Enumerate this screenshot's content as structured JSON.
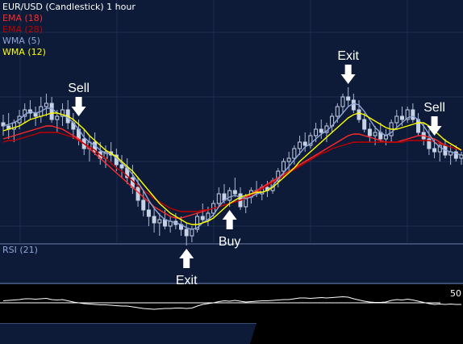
{
  "header": {
    "title": "EUR/USD (Candlestick)  1 hour"
  },
  "legend": [
    {
      "label": "EMA (18)",
      "color": "#ff2a2a"
    },
    {
      "label": "EMA (28)",
      "color": "#c00000"
    },
    {
      "label": "WMA (5)",
      "color": "#8fa6d6"
    },
    {
      "label": "WMA (12)",
      "color": "#ffff00"
    }
  ],
  "rsi": {
    "label": "RSI (21)",
    "level_label": "50"
  },
  "chart_data": {
    "type": "candlestick",
    "title": "EUR/USD (Candlestick)  1 hour",
    "price_range": [
      0,
      100
    ],
    "candles": [
      [
        70,
        75,
        62,
        68
      ],
      [
        68,
        76,
        60,
        66
      ],
      [
        66,
        72,
        58,
        70
      ],
      [
        70,
        78,
        66,
        74
      ],
      [
        74,
        82,
        70,
        78
      ],
      [
        78,
        84,
        72,
        76
      ],
      [
        76,
        80,
        68,
        74
      ],
      [
        74,
        86,
        70,
        80
      ],
      [
        80,
        88,
        74,
        82
      ],
      [
        82,
        86,
        70,
        72
      ],
      [
        72,
        78,
        64,
        74
      ],
      [
        74,
        82,
        68,
        78
      ],
      [
        78,
        84,
        66,
        70
      ],
      [
        70,
        76,
        60,
        66
      ],
      [
        66,
        72,
        56,
        60
      ],
      [
        60,
        66,
        50,
        54
      ],
      [
        54,
        62,
        46,
        58
      ],
      [
        58,
        64,
        50,
        52
      ],
      [
        52,
        58,
        44,
        48
      ],
      [
        48,
        56,
        42,
        52
      ],
      [
        52,
        58,
        46,
        50
      ],
      [
        50,
        54,
        40,
        44
      ],
      [
        44,
        50,
        36,
        42
      ],
      [
        42,
        48,
        32,
        36
      ],
      [
        36,
        44,
        26,
        30
      ],
      [
        30,
        36,
        18,
        22
      ],
      [
        22,
        28,
        12,
        16
      ],
      [
        16,
        22,
        6,
        12
      ],
      [
        12,
        18,
        2,
        8
      ],
      [
        8,
        14,
        0,
        10
      ],
      [
        10,
        16,
        4,
        6
      ],
      [
        6,
        12,
        2,
        9
      ],
      [
        9,
        14,
        4,
        7
      ],
      [
        7,
        12,
        0,
        4
      ],
      [
        4,
        8,
        -6,
        0
      ],
      [
        0,
        6,
        -4,
        4
      ],
      [
        4,
        14,
        2,
        12
      ],
      [
        12,
        20,
        8,
        10
      ],
      [
        10,
        18,
        6,
        14
      ],
      [
        14,
        22,
        12,
        20
      ],
      [
        20,
        30,
        18,
        26
      ],
      [
        26,
        32,
        20,
        22
      ],
      [
        22,
        30,
        18,
        28
      ],
      [
        28,
        36,
        24,
        26
      ],
      [
        26,
        30,
        16,
        18
      ],
      [
        18,
        26,
        14,
        24
      ],
      [
        24,
        30,
        20,
        28
      ],
      [
        28,
        34,
        24,
        26
      ],
      [
        26,
        32,
        22,
        30
      ],
      [
        30,
        34,
        24,
        28
      ],
      [
        28,
        36,
        26,
        34
      ],
      [
        34,
        42,
        30,
        40
      ],
      [
        40,
        48,
        36,
        46
      ],
      [
        46,
        52,
        40,
        48
      ],
      [
        48,
        56,
        44,
        54
      ],
      [
        54,
        62,
        50,
        58
      ],
      [
        58,
        64,
        52,
        56
      ],
      [
        56,
        64,
        54,
        62
      ],
      [
        62,
        70,
        58,
        66
      ],
      [
        66,
        72,
        60,
        64
      ],
      [
        64,
        70,
        58,
        68
      ],
      [
        68,
        76,
        64,
        74
      ],
      [
        74,
        82,
        70,
        80
      ],
      [
        80,
        88,
        76,
        86
      ],
      [
        86,
        92,
        80,
        84
      ],
      [
        84,
        88,
        76,
        78
      ],
      [
        78,
        84,
        70,
        72
      ],
      [
        72,
        76,
        64,
        66
      ],
      [
        66,
        70,
        58,
        62
      ],
      [
        62,
        68,
        56,
        64
      ],
      [
        64,
        70,
        58,
        60
      ],
      [
        60,
        66,
        56,
        62
      ],
      [
        62,
        72,
        58,
        70
      ],
      [
        70,
        78,
        66,
        74
      ],
      [
        74,
        80,
        68,
        72
      ],
      [
        72,
        80,
        70,
        78
      ],
      [
        78,
        82,
        70,
        72
      ],
      [
        72,
        76,
        62,
        64
      ],
      [
        64,
        70,
        56,
        60
      ],
      [
        60,
        66,
        50,
        54
      ],
      [
        54,
        60,
        48,
        52
      ],
      [
        52,
        58,
        46,
        56
      ],
      [
        56,
        60,
        48,
        50
      ],
      [
        50,
        56,
        44,
        52
      ],
      [
        52,
        56,
        46,
        48
      ],
      [
        48,
        52,
        44,
        50
      ]
    ],
    "series": [
      {
        "name": "EMA (18)",
        "values": [
          60,
          61,
          62,
          63,
          64,
          65,
          66,
          67,
          68,
          68,
          67,
          66,
          64,
          62,
          60,
          57,
          54,
          51,
          48,
          45,
          42,
          39,
          36,
          33,
          30,
          27,
          24,
          21,
          18,
          16,
          14,
          12,
          11,
          11,
          12,
          13,
          14,
          15,
          16,
          17,
          18,
          19,
          20,
          21,
          22,
          24,
          26,
          28,
          30,
          32,
          34,
          36,
          38,
          40,
          42,
          44,
          46,
          48,
          50,
          52,
          54,
          56,
          58,
          60,
          62,
          63,
          63,
          62,
          61,
          60,
          59,
          58,
          58,
          58,
          59,
          60,
          61,
          62,
          62,
          61,
          60,
          58,
          56,
          55,
          54,
          53
        ]
      },
      {
        "name": "EMA (28)",
        "values": [
          58,
          59,
          59,
          60,
          61,
          62,
          63,
          64,
          64,
          64,
          64,
          63,
          62,
          61,
          59,
          57,
          55,
          53,
          50,
          48,
          45,
          42,
          40,
          37,
          34,
          31,
          28,
          26,
          23,
          21,
          19,
          17,
          16,
          15,
          15,
          15,
          15,
          16,
          16,
          17,
          18,
          19,
          20,
          21,
          22,
          23,
          25,
          27,
          29,
          31,
          33,
          35,
          37,
          39,
          41,
          43,
          45,
          47,
          49,
          51,
          52,
          54,
          55,
          56,
          57,
          58,
          58,
          58,
          58,
          58,
          58,
          58,
          58,
          58,
          58,
          59,
          59,
          59,
          59,
          59,
          58,
          57,
          56,
          55,
          54,
          53
        ]
      },
      {
        "name": "WMA (5)",
        "values": [
          68,
          69,
          70,
          72,
          75,
          77,
          76,
          77,
          79,
          79,
          76,
          75,
          73,
          70,
          66,
          61,
          58,
          56,
          53,
          51,
          51,
          48,
          45,
          42,
          38,
          33,
          28,
          22,
          17,
          13,
          10,
          9,
          8,
          7,
          5,
          4,
          5,
          8,
          10,
          13,
          18,
          22,
          24,
          25,
          24,
          23,
          24,
          26,
          27,
          28,
          31,
          35,
          39,
          43,
          47,
          51,
          55,
          57,
          60,
          63,
          65,
          68,
          72,
          76,
          80,
          82,
          81,
          77,
          72,
          67,
          64,
          62,
          64,
          67,
          70,
          73,
          74,
          72,
          68,
          63,
          58,
          55,
          53,
          52,
          51,
          50
        ]
      },
      {
        "name": "WMA (12)",
        "values": [
          65,
          66,
          67,
          68,
          70,
          72,
          73,
          74,
          75,
          76,
          76,
          75,
          74,
          72,
          69,
          66,
          62,
          59,
          56,
          53,
          51,
          49,
          46,
          43,
          40,
          36,
          32,
          28,
          24,
          20,
          17,
          14,
          12,
          10,
          8,
          7,
          7,
          8,
          9,
          11,
          14,
          17,
          20,
          22,
          24,
          25,
          26,
          27,
          27,
          28,
          30,
          33,
          36,
          39,
          42,
          46,
          49,
          52,
          55,
          58,
          61,
          64,
          67,
          70,
          73,
          75,
          76,
          75,
          73,
          71,
          69,
          67,
          66,
          66,
          67,
          68,
          69,
          70,
          70,
          68,
          65,
          62,
          59,
          57,
          55,
          53
        ]
      }
    ],
    "rsi_values": [
      55,
      56,
      57,
      58,
      60,
      60,
      59,
      60,
      61,
      58,
      57,
      58,
      55,
      52,
      50,
      48,
      47,
      46,
      45,
      45,
      44,
      43,
      42,
      42,
      40,
      38,
      36,
      35,
      34,
      35,
      36,
      36,
      37,
      37,
      36,
      37,
      42,
      46,
      48,
      50,
      53,
      55,
      54,
      56,
      54,
      52,
      53,
      54,
      55,
      55,
      56,
      57,
      58,
      58,
      60,
      62,
      62,
      61,
      62,
      63,
      62,
      63,
      64,
      65,
      64,
      60,
      57,
      54,
      52,
      51,
      51,
      52,
      56,
      58,
      57,
      59,
      57,
      54,
      51,
      48,
      46,
      47,
      46,
      47,
      46,
      46
    ],
    "rsi_range": [
      0,
      100
    ],
    "rsi_level": 50,
    "annotations": [
      {
        "label": "Sell",
        "direction": "down",
        "index": 14
      },
      {
        "label": "Exit",
        "direction": "up",
        "index": 34
      },
      {
        "label": "Buy",
        "direction": "up",
        "index": 42
      },
      {
        "label": "Exit",
        "direction": "down",
        "index": 64
      },
      {
        "label": "Sell",
        "direction": "down",
        "index": 80
      }
    ]
  }
}
